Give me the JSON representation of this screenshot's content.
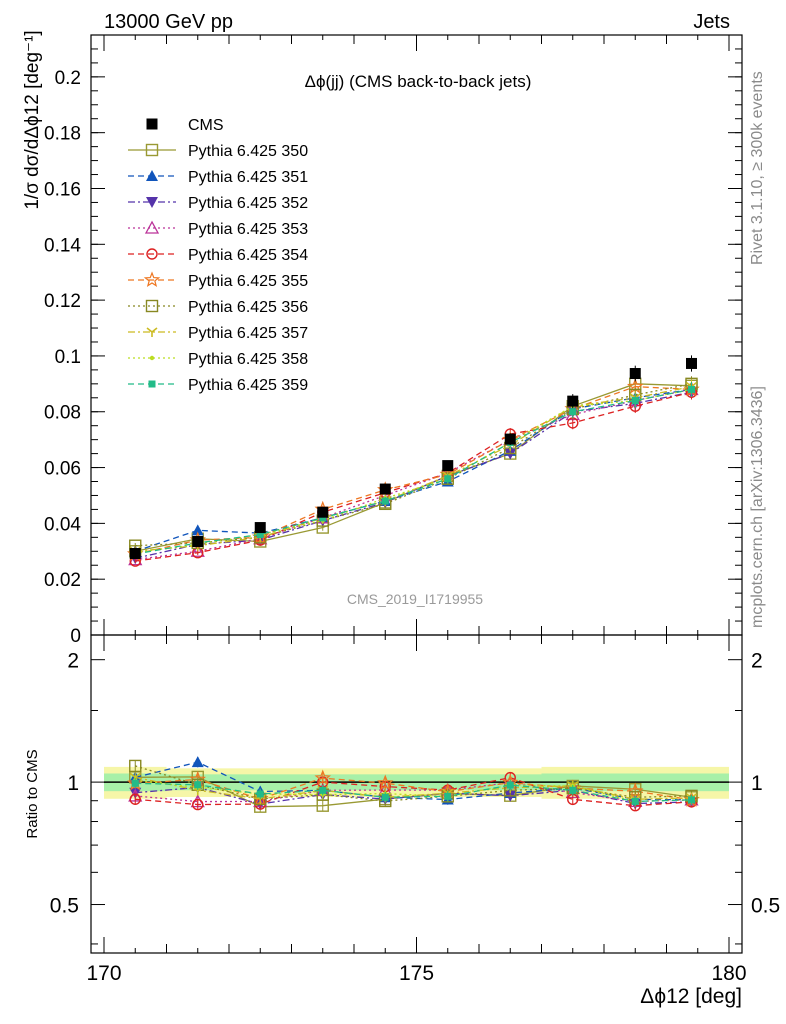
{
  "header": {
    "left": "13000 GeV pp",
    "right": "Jets"
  },
  "side_labels": {
    "rivet": "Rivet 3.1.10, ≥ 300k events",
    "mcplots": "mcplots.cern.ch [arXiv:1306.3436]"
  },
  "chart_data": {
    "type": "scatter",
    "title": "Δϕ(jj) (CMS back-to-back jets)",
    "watermark": "CMS_2019_I1719955",
    "xlabel": "Δϕ12 [deg]",
    "ylabel": "1/σ dσ/dΔϕ12 [deg⁻¹]",
    "ratio_ylabel": "Ratio to CMS",
    "xlim": [
      170,
      180
    ],
    "ylim": [
      0,
      0.215
    ],
    "ratio_ylim": [
      0.38,
      2.3
    ],
    "ratio_log": true,
    "x_ticks": [
      "170",
      "175",
      "180"
    ],
    "y_ticks": [
      "0",
      "0.02",
      "0.04",
      "0.06",
      "0.08",
      "0.1",
      "0.12",
      "0.14",
      "0.16",
      "0.18",
      "0.2"
    ],
    "ratio_ticks": [
      "0.5",
      "1",
      "2"
    ],
    "legend_position": "top-left",
    "x": [
      170.5,
      171.5,
      172.5,
      173.5,
      174.5,
      175.5,
      176.5,
      177.5,
      178.5,
      179.4
    ],
    "series": [
      {
        "name": "CMS",
        "color": "#000000",
        "marker": "square-filled",
        "line": "none",
        "values": [
          0.0292,
          0.0335,
          0.0385,
          0.044,
          0.0523,
          0.0607,
          0.0702,
          0.0838,
          0.0937,
          0.0973
        ]
      },
      {
        "name": "Pythia 6.425 350",
        "color": "#999933",
        "marker": "square-open",
        "line": "solid",
        "values": [
          0.03,
          0.0345,
          0.0335,
          0.0385,
          0.0475,
          0.057,
          0.065,
          0.082,
          0.09,
          0.0893
        ]
      },
      {
        "name": "Pythia 6.425 351",
        "color": "#1155bb",
        "marker": "triangle-up",
        "line": "dashed",
        "values": [
          0.03,
          0.0375,
          0.0365,
          0.042,
          0.048,
          0.055,
          0.066,
          0.081,
          0.085,
          0.088
        ]
      },
      {
        "name": "Pythia 6.425 352",
        "color": "#5533aa",
        "marker": "triangle-down",
        "line": "dashdot",
        "values": [
          0.0275,
          0.0325,
          0.034,
          0.041,
          0.0475,
          0.057,
          0.065,
          0.08,
          0.083,
          0.087
        ]
      },
      {
        "name": "Pythia 6.425 353",
        "color": "#bb3399",
        "marker": "triangle-open",
        "line": "dotted",
        "values": [
          0.027,
          0.03,
          0.0345,
          0.042,
          0.05,
          0.058,
          0.07,
          0.079,
          0.084,
          0.088
        ]
      },
      {
        "name": "Pythia 6.425 354",
        "color": "#dd2222",
        "marker": "circle-open",
        "line": "dashed",
        "values": [
          0.0265,
          0.0295,
          0.034,
          0.044,
          0.051,
          0.058,
          0.072,
          0.076,
          0.082,
          0.087
        ]
      },
      {
        "name": "Pythia 6.425 355",
        "color": "#ee7722",
        "marker": "star-open",
        "line": "dashed",
        "values": [
          0.029,
          0.034,
          0.035,
          0.045,
          0.052,
          0.0575,
          0.07,
          0.081,
          0.089,
          0.088
        ]
      },
      {
        "name": "Pythia 6.425 356",
        "color": "#888822",
        "marker": "square-open",
        "line": "dotted",
        "values": [
          0.032,
          0.033,
          0.035,
          0.041,
          0.047,
          0.056,
          0.067,
          0.081,
          0.086,
          0.09
        ]
      },
      {
        "name": "Pythia 6.425 357",
        "color": "#ccbb22",
        "marker": "y-marker",
        "line": "dashdot",
        "values": [
          0.03,
          0.032,
          0.035,
          0.042,
          0.048,
          0.057,
          0.068,
          0.082,
          0.085,
          0.089
        ]
      },
      {
        "name": "Pythia 6.425 358",
        "color": "#bbdd22",
        "marker": "dot",
        "line": "dotted",
        "values": [
          0.0295,
          0.0325,
          0.036,
          0.041,
          0.049,
          0.056,
          0.069,
          0.082,
          0.084,
          0.088
        ]
      },
      {
        "name": "Pythia 6.425 359",
        "color": "#22bb88",
        "marker": "square-small",
        "line": "dashed",
        "values": [
          0.029,
          0.033,
          0.036,
          0.042,
          0.048,
          0.056,
          0.069,
          0.08,
          0.084,
          0.088
        ]
      }
    ]
  }
}
